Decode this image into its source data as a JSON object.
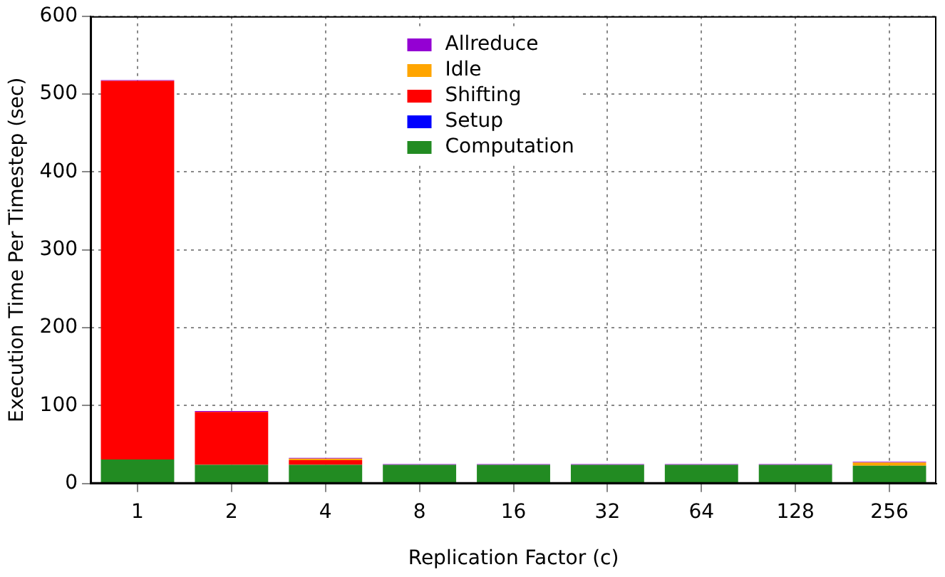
{
  "chart_data": {
    "type": "bar",
    "stacked": true,
    "xlabel": "Replication Factor (c)",
    "ylabel": "Execution Time Per Timestep (sec)",
    "categories": [
      "1",
      "2",
      "4",
      "8",
      "16",
      "32",
      "64",
      "128",
      "256"
    ],
    "series": [
      {
        "name": "Computation",
        "color": "#228b22",
        "values": [
          31,
          24,
          24,
          24,
          24,
          24,
          24,
          24,
          23
        ]
      },
      {
        "name": "Setup",
        "color": "#0000ff",
        "values": [
          0,
          0,
          0,
          0,
          0,
          0,
          0,
          0,
          0
        ]
      },
      {
        "name": "Shifting",
        "color": "#ff0000",
        "values": [
          486,
          68,
          6,
          0,
          0,
          0,
          0,
          0,
          0
        ]
      },
      {
        "name": "Idle",
        "color": "#ffa500",
        "values": [
          0,
          0,
          2,
          0,
          0,
          0,
          0,
          0,
          4
        ]
      },
      {
        "name": "Allreduce",
        "color": "#9400d3",
        "values": [
          1,
          1,
          1,
          1,
          1,
          1,
          1,
          1,
          1
        ]
      }
    ],
    "ylim": [
      0,
      600
    ],
    "yticks": [
      0,
      100,
      200,
      300,
      400,
      500,
      600
    ],
    "grid": true,
    "legend": "top"
  }
}
